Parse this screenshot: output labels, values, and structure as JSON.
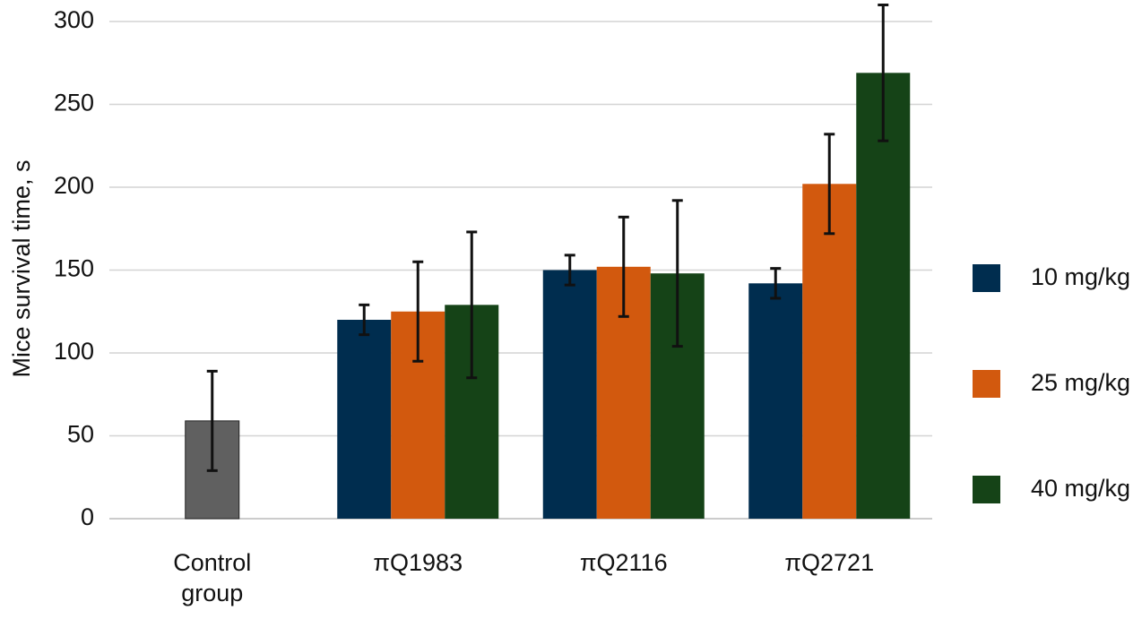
{
  "chart_data": {
    "type": "bar",
    "y_label": "Mice survival time, s",
    "categories": [
      "Control group",
      "πQ1983",
      "πQ2116",
      "πQ2721"
    ],
    "series": [
      {
        "color": "#606060",
        "values": [
          59,
          null,
          null,
          null
        ],
        "errors": [
          30,
          null,
          null,
          null
        ]
      },
      {
        "name": "10 mg/kg",
        "color": "#002d4f",
        "values": [
          null,
          120,
          150,
          142
        ],
        "errors": [
          null,
          9,
          9,
          9
        ]
      },
      {
        "name": "25 mg/kg",
        "color": "#d2590e",
        "values": [
          null,
          125,
          152,
          202
        ],
        "errors": [
          null,
          30,
          30,
          30
        ]
      },
      {
        "name": "40 mg/kg",
        "color": "#154317",
        "values": [
          null,
          129,
          148,
          269
        ],
        "errors": [
          null,
          44,
          44,
          41
        ]
      }
    ],
    "ylim": [
      0,
      300
    ],
    "yticks": [
      0,
      50,
      100,
      150,
      200,
      250,
      300
    ],
    "grid": true
  }
}
